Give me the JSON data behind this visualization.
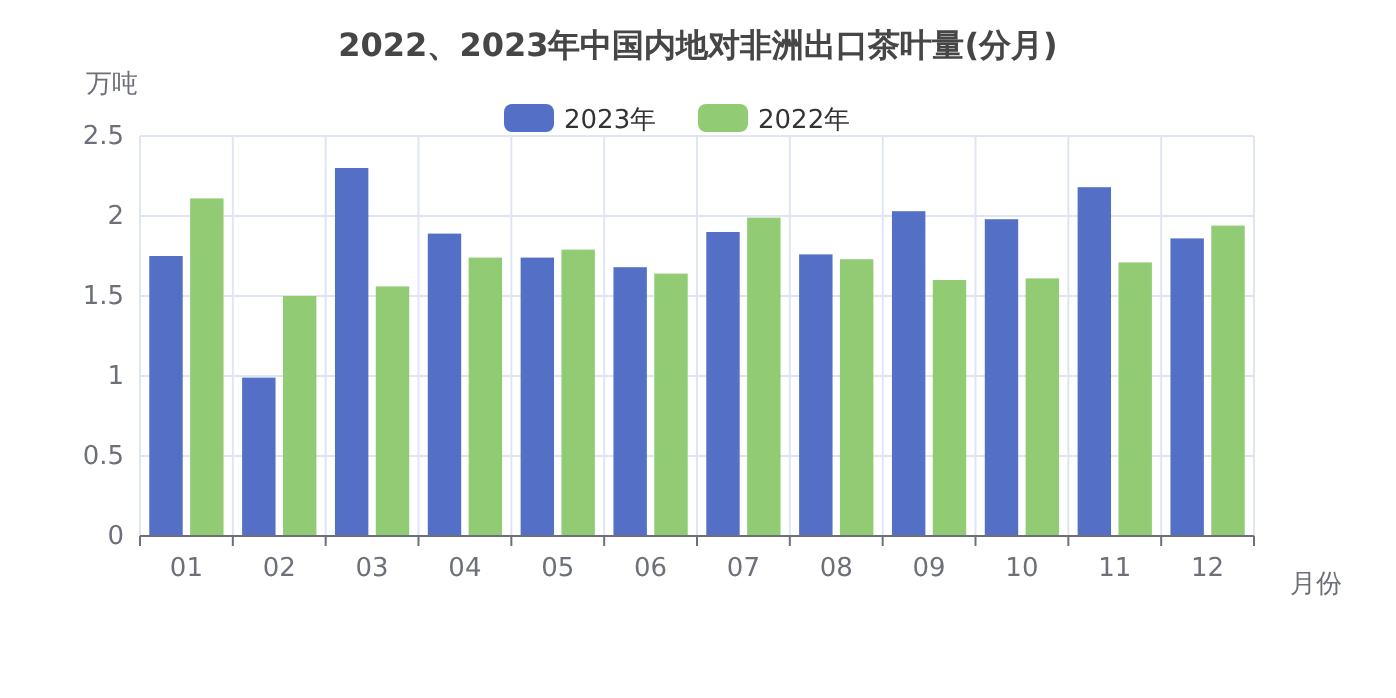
{
  "chart_data": {
    "type": "bar",
    "title": "2022、2023年中国内地对非洲出口茶叶量(分月)",
    "xlabel": "月份",
    "ylabel": "万吨",
    "categories": [
      "01",
      "02",
      "03",
      "04",
      "05",
      "06",
      "07",
      "08",
      "09",
      "10",
      "11",
      "12"
    ],
    "series": [
      {
        "name": "2023年",
        "color": "#5470c6",
        "values": [
          1.75,
          0.99,
          2.3,
          1.89,
          1.74,
          1.68,
          1.9,
          1.76,
          2.03,
          1.98,
          2.18,
          1.86
        ]
      },
      {
        "name": "2022年",
        "color": "#91cc75",
        "values": [
          2.11,
          1.5,
          1.56,
          1.74,
          1.79,
          1.64,
          1.99,
          1.73,
          1.6,
          1.61,
          1.71,
          1.94
        ]
      }
    ],
    "ylim": [
      0,
      2.5
    ],
    "yticks": [
      0,
      0.5,
      1,
      1.5,
      2,
      2.5
    ],
    "grid": true,
    "legend": "top"
  }
}
